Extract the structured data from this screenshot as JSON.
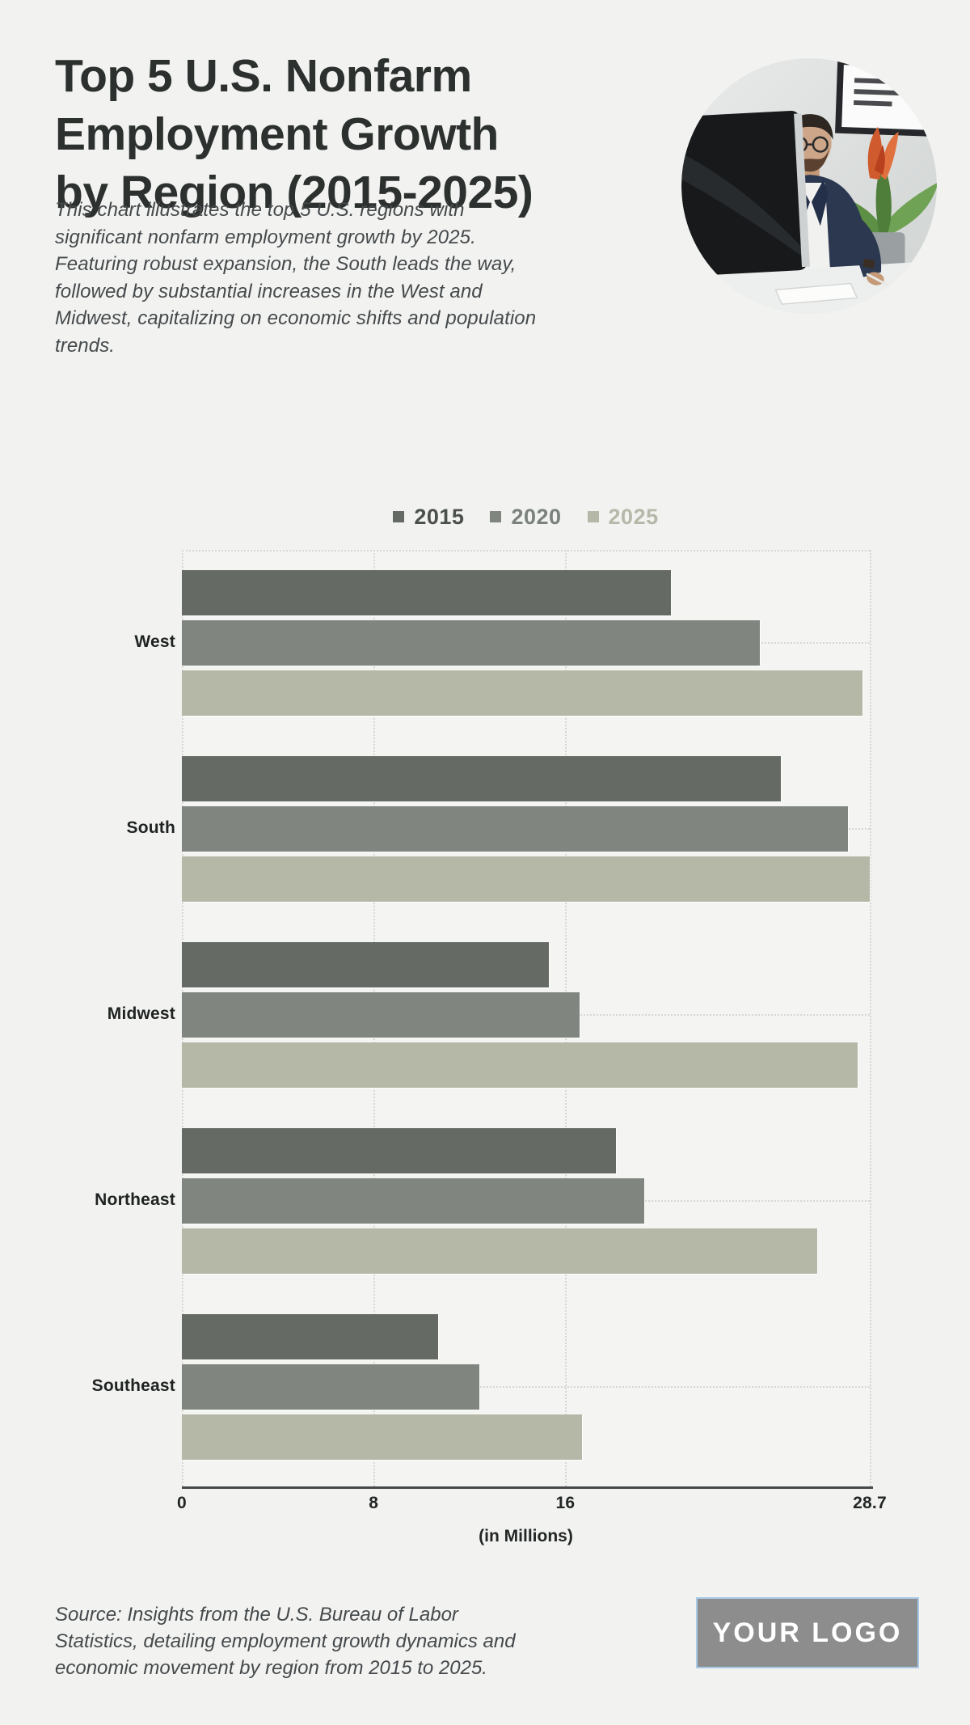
{
  "page": {
    "background": "#f2f3f1"
  },
  "header": {
    "title": "Top 5 U.S. Nonfarm Employment Growth by Region (2015-2025)",
    "title_lines": [
      "Top 5 U.S. Nonfarm",
      "Employment Growth",
      "by Region (2015-2025)"
    ],
    "description": "This chart illustrates the top 5 U.S. regions with significant nonfarm employment growth by 2025. Featuring robust expansion, the South leads the way, followed by substantial increases in the West and Midwest, capitalizing on economic shifts and population trends."
  },
  "photo": {
    "label": "businessman working at desk with monitor, plant and wall frame"
  },
  "chart_data": {
    "type": "bar",
    "orientation": "horizontal",
    "categories": [
      "West",
      "South",
      "Midwest",
      "Northeast",
      "Southeast"
    ],
    "series": [
      {
        "name": "2015",
        "color": "#666a64",
        "label_color": "#4c504d",
        "values": [
          20.4,
          25.0,
          15.3,
          18.1,
          10.7
        ]
      },
      {
        "name": "2020",
        "color": "#80867f",
        "label_color": "#7b817b",
        "values": [
          24.1,
          27.8,
          16.6,
          19.3,
          12.4
        ]
      },
      {
        "name": "2025",
        "color": "#b5b7a7",
        "label_color": "#b6b8a9",
        "values": [
          28.4,
          28.7,
          28.2,
          26.5,
          16.7
        ]
      }
    ],
    "xlabel": "(in Millions)",
    "x_ticks": [
      "0",
      "8",
      "16",
      "28.7"
    ],
    "x_tick_values": [
      0,
      8,
      16,
      28.7
    ],
    "xlim": [
      0,
      28.7
    ],
    "legend_position": "top-center",
    "grid": "dotted vertical gridlines + dotted category lines",
    "grid_color": "#d6d8d3",
    "axis_color": "#45494a"
  },
  "footer": {
    "source": "Source: Insights from the U.S. Bureau of Labor Statistics, detailing employment growth dynamics and economic movement by region from 2015 to 2025.",
    "logo_text": "YOUR LOGO"
  }
}
